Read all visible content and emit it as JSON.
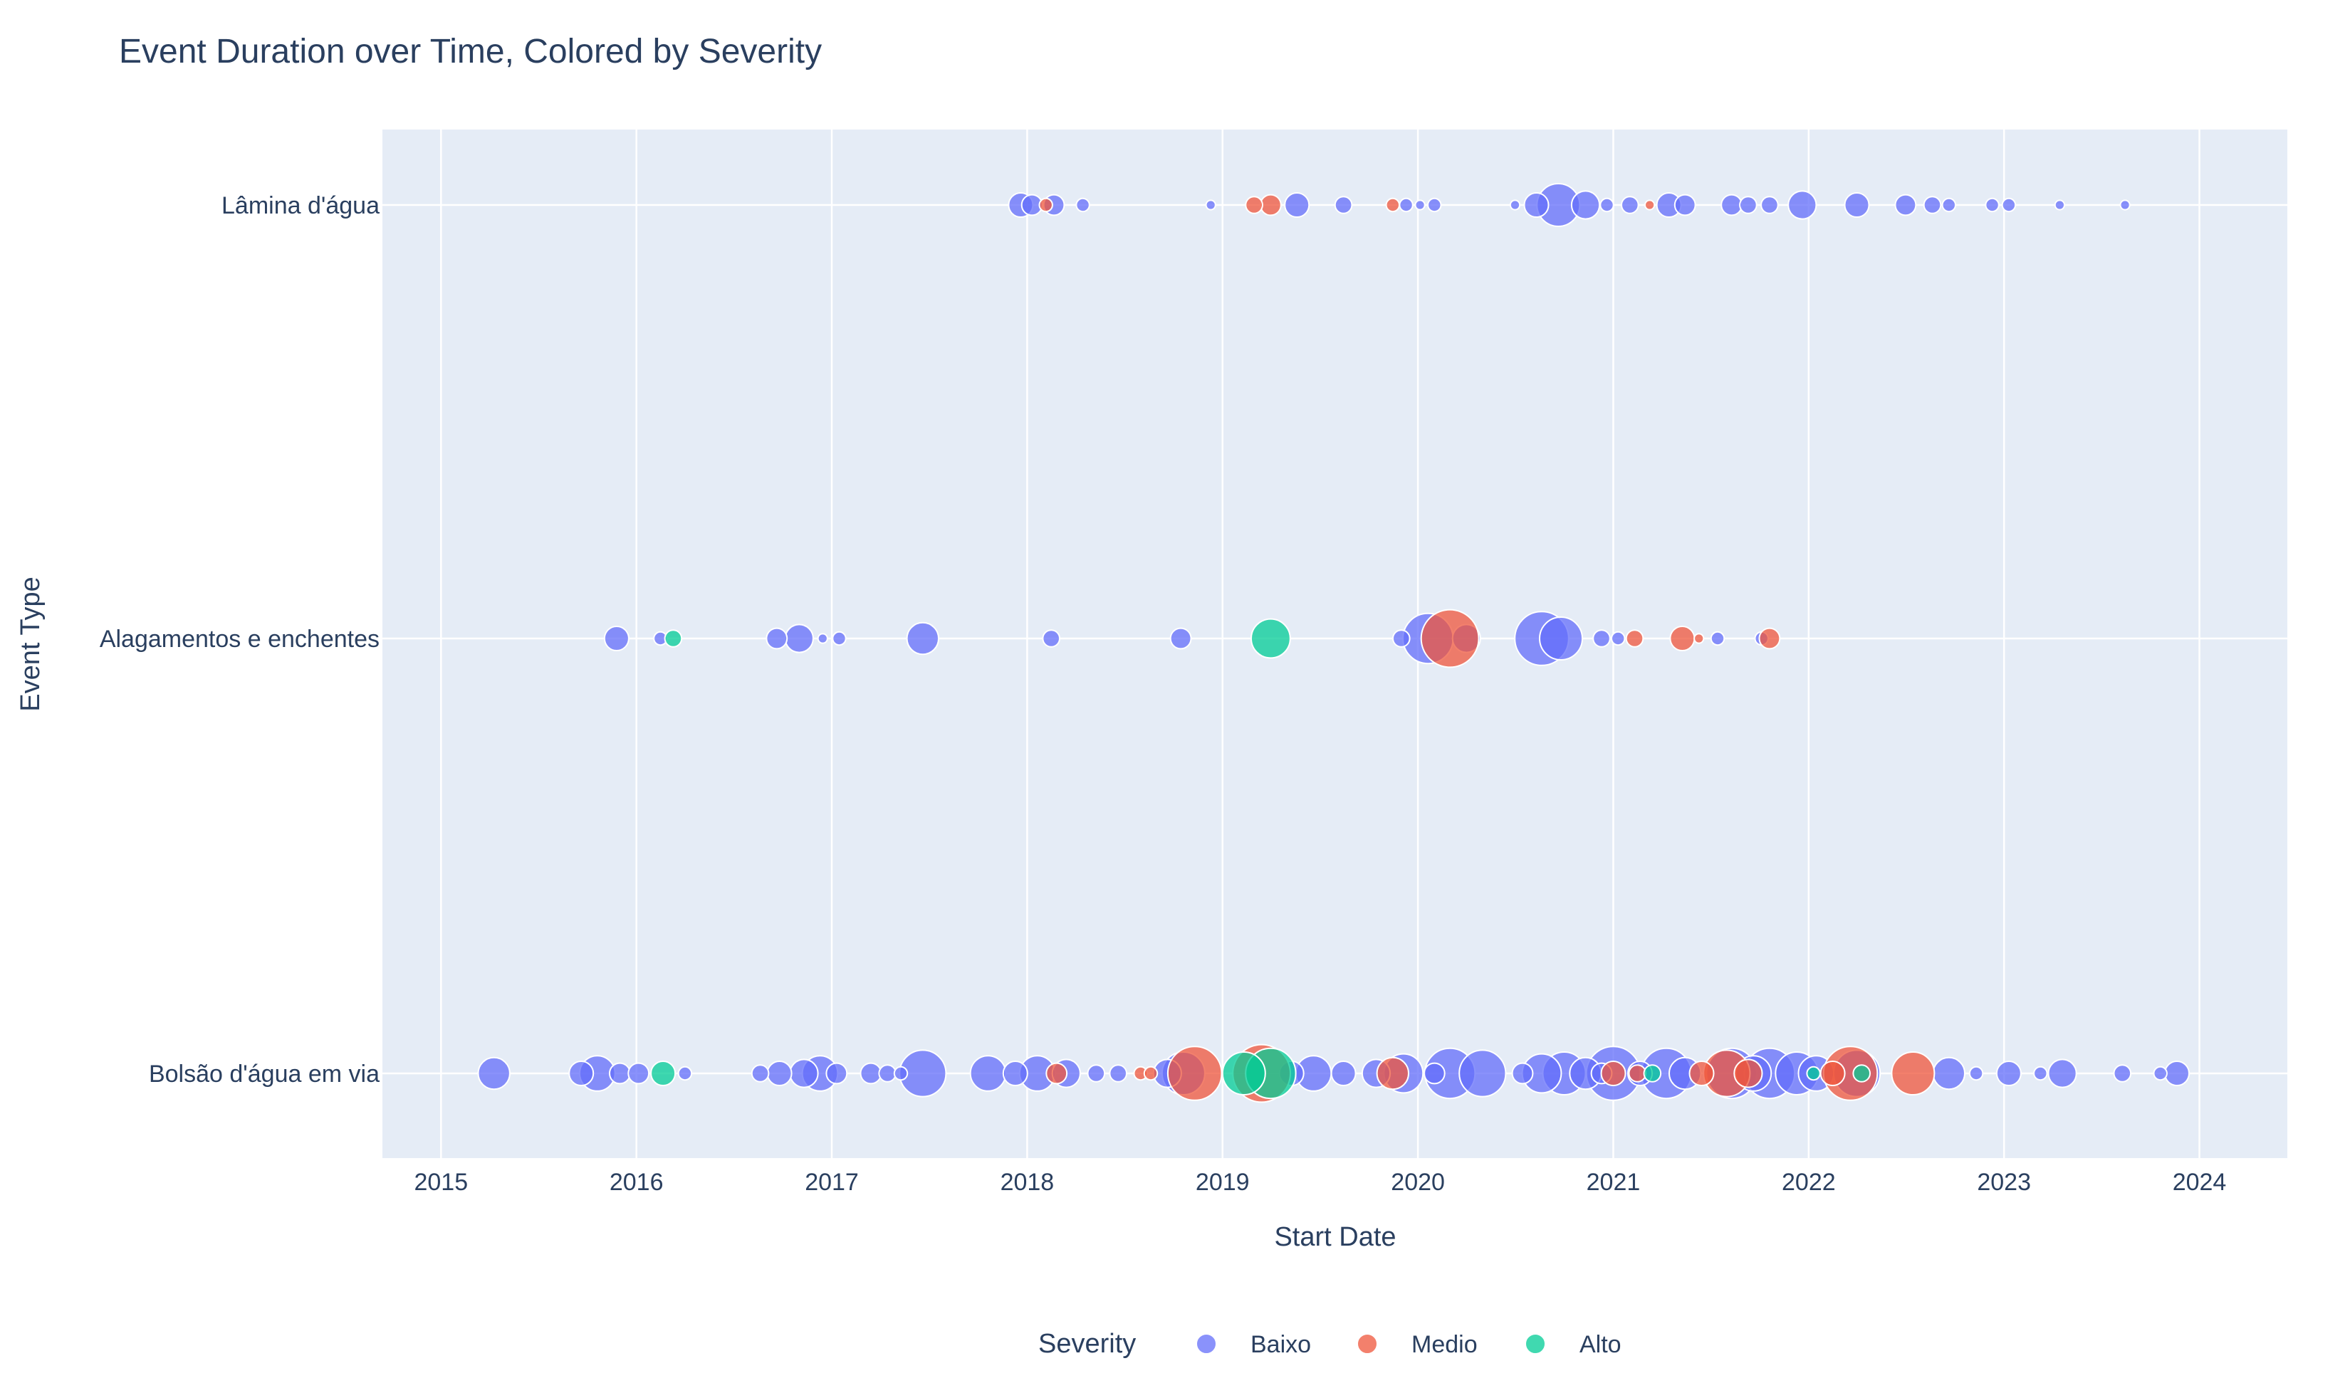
{
  "chart_data": {
    "type": "scatter",
    "title": "Event Duration over Time, Colored by Severity",
    "xlabel": "Start Date",
    "ylabel": "Event Type",
    "xlim": [
      2014.7,
      2024.45
    ],
    "x_ticks": [
      "2015",
      "2016",
      "2017",
      "2018",
      "2019",
      "2020",
      "2021",
      "2022",
      "2023",
      "2024"
    ],
    "y_categories": [
      "Bolsão d'água em via",
      "Alagamentos e enchentes",
      "Lâmina d'água"
    ],
    "grid": true,
    "legend": {
      "title": "Severity",
      "placement": "bottom-center",
      "entries": [
        "Baixo",
        "Medio",
        "Alto"
      ]
    },
    "colors": {
      "Baixo": "#636efa",
      "Medio": "#ef553b",
      "Alto": "#00cc96",
      "plot_bg": "#e5ecf6",
      "text": "#2a3f5f"
    },
    "series": [
      {
        "name": "Baixo",
        "points": [
          [
            "2017-12-20",
            "Lâmina d'água",
            5
          ],
          [
            "2018-01-10",
            "Lâmina d'água",
            4
          ],
          [
            "2018-02-20",
            "Lâmina d'água",
            4
          ],
          [
            "2018-04-15",
            "Lâmina d'água",
            2
          ],
          [
            "2018-12-10",
            "Lâmina d'água",
            1
          ],
          [
            "2019-05-20",
            "Lâmina d'água",
            5
          ],
          [
            "2019-08-15",
            "Lâmina d'água",
            3
          ],
          [
            "2019-12-10",
            "Lâmina d'água",
            2
          ],
          [
            "2020-01-05",
            "Lâmina d'água",
            1
          ],
          [
            "2020-02-01",
            "Lâmina d'água",
            2
          ],
          [
            "2020-07-01",
            "Lâmina d'água",
            1
          ],
          [
            "2020-08-10",
            "Lâmina d'água",
            5
          ],
          [
            "2020-09-20",
            "Lâmina d'água",
            10
          ],
          [
            "2020-11-10",
            "Lâmina d'água",
            6
          ],
          [
            "2020-12-20",
            "Lâmina d'água",
            2
          ],
          [
            "2021-02-01",
            "Lâmina d'água",
            3
          ],
          [
            "2021-04-15",
            "Lâmina d'água",
            5
          ],
          [
            "2021-05-15",
            "Lâmina d'água",
            4
          ],
          [
            "2021-08-10",
            "Lâmina d'água",
            4
          ],
          [
            "2021-09-10",
            "Lâmina d'água",
            3
          ],
          [
            "2021-10-20",
            "Lâmina d'água",
            3
          ],
          [
            "2021-12-20",
            "Lâmina d'água",
            6
          ],
          [
            "2022-04-01",
            "Lâmina d'água",
            5
          ],
          [
            "2022-07-01",
            "Lâmina d'água",
            4
          ],
          [
            "2022-08-20",
            "Lâmina d'água",
            3
          ],
          [
            "2022-09-20",
            "Lâmina d'água",
            2
          ],
          [
            "2022-12-10",
            "Lâmina d'água",
            2
          ],
          [
            "2023-01-10",
            "Lâmina d'água",
            2
          ],
          [
            "2023-04-15",
            "Lâmina d'água",
            1
          ],
          [
            "2023-08-15",
            "Lâmina d'água",
            1
          ],
          [
            "2015-11-25",
            "Alagamentos e enchentes",
            5
          ],
          [
            "2016-02-15",
            "Alagamentos e enchentes",
            2
          ],
          [
            "2016-09-20",
            "Alagamentos e enchentes",
            4
          ],
          [
            "2016-11-01",
            "Alagamentos e enchentes",
            6
          ],
          [
            "2016-12-15",
            "Alagamentos e enchentes",
            1
          ],
          [
            "2017-01-15",
            "Alagamentos e enchentes",
            2
          ],
          [
            "2017-06-20",
            "Alagamentos e enchentes",
            7
          ],
          [
            "2018-02-15",
            "Alagamentos e enchentes",
            3
          ],
          [
            "2018-10-15",
            "Alagamentos e enchentes",
            4
          ],
          [
            "2019-12-01",
            "Alagamentos e enchentes",
            3
          ],
          [
            "2020-01-20",
            "Alagamentos e enchentes",
            12
          ],
          [
            "2020-04-01",
            "Alagamentos e enchentes",
            6
          ],
          [
            "2020-08-20",
            "Alagamentos e enchentes",
            13
          ],
          [
            "2020-09-25",
            "Alagamentos e enchentes",
            10
          ],
          [
            "2020-12-10",
            "Alagamentos e enchentes",
            3
          ],
          [
            "2021-01-10",
            "Alagamentos e enchentes",
            2
          ],
          [
            "2021-07-15",
            "Alagamentos e enchentes",
            2
          ],
          [
            "2021-10-05",
            "Alagamentos e enchentes",
            2
          ],
          [
            "2015-04-10",
            "Bolsão d'água em via",
            7
          ],
          [
            "2015-09-20",
            "Bolsão d'água em via",
            5
          ],
          [
            "2015-10-20",
            "Bolsão d'água em via",
            8
          ],
          [
            "2015-12-01",
            "Bolsão d'água em via",
            4
          ],
          [
            "2016-01-05",
            "Bolsão d'água em via",
            4
          ],
          [
            "2016-04-01",
            "Bolsão d'água em via",
            2
          ],
          [
            "2016-08-20",
            "Bolsão d'água em via",
            3
          ],
          [
            "2016-09-25",
            "Bolsão d'água em via",
            5
          ],
          [
            "2016-11-10",
            "Bolsão d'água em via",
            6
          ],
          [
            "2016-12-10",
            "Bolsão d'água em via",
            8
          ],
          [
            "2017-01-10",
            "Bolsão d'água em via",
            4
          ],
          [
            "2017-03-15",
            "Bolsão d'água em via",
            4
          ],
          [
            "2017-04-15",
            "Bolsão d'água em via",
            3
          ],
          [
            "2017-05-10",
            "Bolsão d'água em via",
            2
          ],
          [
            "2017-06-20",
            "Bolsão d'água em via",
            11
          ],
          [
            "2017-10-20",
            "Bolsão d'água em via",
            8
          ],
          [
            "2017-12-10",
            "Bolsão d'água em via",
            5
          ],
          [
            "2018-01-20",
            "Bolsão d'água em via",
            8
          ],
          [
            "2018-03-15",
            "Bolsão d'água em via",
            6
          ],
          [
            "2018-05-10",
            "Bolsão d'água em via",
            3
          ],
          [
            "2018-06-20",
            "Bolsão d'água em via",
            3
          ],
          [
            "2018-09-20",
            "Bolsão d'água em via",
            6
          ],
          [
            "2018-10-20",
            "Bolsão d'água em via",
            10
          ],
          [
            "2019-05-10",
            "Bolsão d'água em via",
            5
          ],
          [
            "2019-06-20",
            "Bolsão d'água em via",
            8
          ],
          [
            "2019-08-15",
            "Bolsão d'água em via",
            5
          ],
          [
            "2019-10-15",
            "Bolsão d'água em via",
            6
          ],
          [
            "2019-12-05",
            "Bolsão d'água em via",
            9
          ],
          [
            "2020-02-01",
            "Bolsão d'água em via",
            4
          ],
          [
            "2020-03-01",
            "Bolsão d'água em via",
            12
          ],
          [
            "2020-05-01",
            "Bolsão d'água em via",
            11
          ],
          [
            "2020-07-15",
            "Bolsão d'água em via",
            4
          ],
          [
            "2020-08-20",
            "Bolsão d'água em via",
            9
          ],
          [
            "2020-10-01",
            "Bolsão d'água em via",
            10
          ],
          [
            "2020-11-10",
            "Bolsão d'água em via",
            7
          ],
          [
            "2020-12-10",
            "Bolsão d'água em via",
            4
          ],
          [
            "2021-01-01",
            "Bolsão d'água em via",
            13
          ],
          [
            "2021-02-20",
            "Bolsão d'água em via",
            5
          ],
          [
            "2021-04-10",
            "Bolsão d'água em via",
            12
          ],
          [
            "2021-05-15",
            "Bolsão d'água em via",
            7
          ],
          [
            "2021-08-10",
            "Bolsão d'água em via",
            12
          ],
          [
            "2021-09-20",
            "Bolsão d'água em via",
            8
          ],
          [
            "2021-10-20",
            "Bolsão d'água em via",
            12
          ],
          [
            "2021-12-10",
            "Bolsão d'água em via",
            10
          ],
          [
            "2022-01-15",
            "Bolsão d'água em via",
            8
          ],
          [
            "2022-04-01",
            "Bolsão d'água em via",
            11
          ],
          [
            "2022-09-20",
            "Bolsão d'água em via",
            7
          ],
          [
            "2022-11-10",
            "Bolsão d'água em via",
            2
          ],
          [
            "2023-01-10",
            "Bolsão d'água em via",
            5
          ],
          [
            "2023-03-10",
            "Bolsão d'água em via",
            2
          ],
          [
            "2023-04-20",
            "Bolsão d'água em via",
            6
          ],
          [
            "2023-08-10",
            "Bolsão d'água em via",
            3
          ],
          [
            "2023-10-20",
            "Bolsão d'água em via",
            2
          ],
          [
            "2023-11-20",
            "Bolsão d'água em via",
            5
          ]
        ]
      },
      {
        "name": "Medio",
        "points": [
          [
            "2018-02-05",
            "Lâmina d'água",
            2
          ],
          [
            "2019-03-01",
            "Lâmina d'água",
            3
          ],
          [
            "2019-04-01",
            "Lâmina d'água",
            4
          ],
          [
            "2019-11-15",
            "Lâmina d'água",
            2
          ],
          [
            "2021-03-10",
            "Lâmina d'água",
            1
          ],
          [
            "2020-03-01",
            "Alagamentos e enchentes",
            14
          ],
          [
            "2021-02-10",
            "Alagamentos e enchentes",
            3
          ],
          [
            "2021-05-10",
            "Alagamentos e enchentes",
            5
          ],
          [
            "2021-06-10",
            "Alagamentos e enchentes",
            1
          ],
          [
            "2021-10-20",
            "Alagamentos e enchentes",
            4
          ],
          [
            "2018-02-25",
            "Bolsão d'água em via",
            4
          ],
          [
            "2018-08-01",
            "Bolsão d'água em via",
            2
          ],
          [
            "2018-08-20",
            "Bolsão d'água em via",
            2
          ],
          [
            "2018-11-10",
            "Bolsão d'água em via",
            13
          ],
          [
            "2019-03-15",
            "Bolsão d'água em via",
            14
          ],
          [
            "2019-11-15",
            "Bolsão d'água em via",
            7
          ],
          [
            "2021-01-01",
            "Bolsão d'água em via",
            5
          ],
          [
            "2021-02-15",
            "Bolsão d'água em via",
            3
          ],
          [
            "2021-06-15",
            "Bolsão d'água em via",
            5
          ],
          [
            "2021-08-01",
            "Bolsão d'água em via",
            11
          ],
          [
            "2021-09-10",
            "Bolsão d'água em via",
            6
          ],
          [
            "2022-02-15",
            "Bolsão d'água em via",
            5
          ],
          [
            "2022-03-20",
            "Bolsão d'água em via",
            13
          ],
          [
            "2022-07-15",
            "Bolsão d'água em via",
            10
          ]
        ]
      },
      {
        "name": "Alto",
        "points": [
          [
            "2016-03-10",
            "Alagamentos e enchentes",
            3
          ],
          [
            "2019-04-01",
            "Alagamentos e enchentes",
            9
          ],
          [
            "2016-02-20",
            "Bolsão d'água em via",
            5
          ],
          [
            "2019-02-10",
            "Bolsão d'água em via",
            10
          ],
          [
            "2019-04-01",
            "Bolsão d'água em via",
            12
          ],
          [
            "2021-03-15",
            "Bolsão d'água em via",
            3
          ],
          [
            "2022-01-10",
            "Bolsão d'água em via",
            2
          ],
          [
            "2022-04-10",
            "Bolsão d'água em via",
            3
          ]
        ]
      }
    ]
  }
}
